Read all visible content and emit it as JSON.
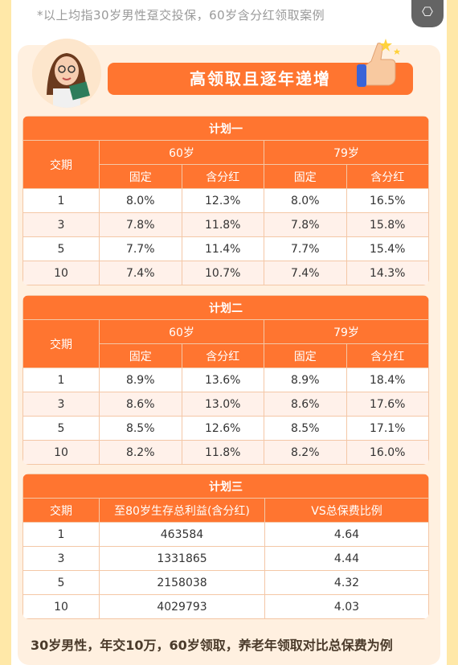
{
  "note": "*以上均指30岁男性趸交投保，60岁含分红领取案例",
  "corner_icon": "text-recognition-icon",
  "banner": "高领取且逐年递增",
  "plan1": {
    "title": "计划一",
    "col_period": "交期",
    "age_a": "60岁",
    "age_b": "79岁",
    "fixed": "固定",
    "bonus": "含分红",
    "rows": [
      [
        "1",
        "8.0%",
        "12.3%",
        "8.0%",
        "16.5%"
      ],
      [
        "3",
        "7.8%",
        "11.8%",
        "7.8%",
        "15.8%"
      ],
      [
        "5",
        "7.7%",
        "11.4%",
        "7.7%",
        "15.4%"
      ],
      [
        "10",
        "7.4%",
        "10.7%",
        "7.4%",
        "14.3%"
      ]
    ]
  },
  "plan2": {
    "title": "计划二",
    "col_period": "交期",
    "age_a": "60岁",
    "age_b": "79岁",
    "fixed": "固定",
    "bonus": "含分红",
    "rows": [
      [
        "1",
        "8.9%",
        "13.6%",
        "8.9%",
        "18.4%"
      ],
      [
        "3",
        "8.6%",
        "13.0%",
        "8.6%",
        "17.6%"
      ],
      [
        "5",
        "8.5%",
        "12.6%",
        "8.5%",
        "17.1%"
      ],
      [
        "10",
        "8.2%",
        "11.8%",
        "8.2%",
        "16.0%"
      ]
    ]
  },
  "plan3": {
    "title": "计划三",
    "col_period": "交期",
    "col_benefit": "至80岁生存总利益(含分红)",
    "col_ratio": "VS总保费比例",
    "rows": [
      [
        "1",
        "463584",
        "4.64"
      ],
      [
        "3",
        "1331865",
        "4.44"
      ],
      [
        "5",
        "2158038",
        "4.32"
      ],
      [
        "10",
        "4029793",
        "4.03"
      ]
    ]
  },
  "footer": "30岁男性，年交10万，60岁领取，养老年领取对比总保费为例"
}
